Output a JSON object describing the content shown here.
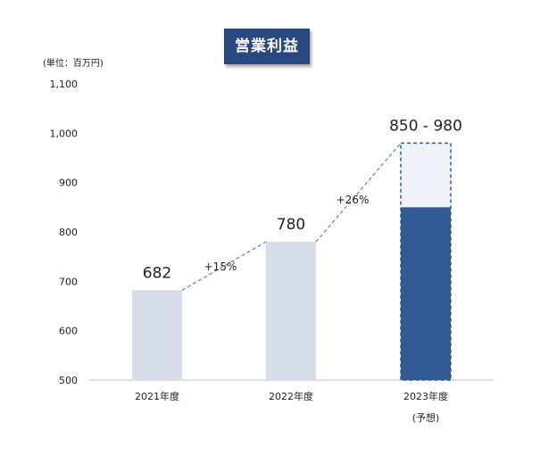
{
  "title": "営業利益",
  "unit_label": "(単位：百万円)",
  "chart_data": {
    "type": "bar",
    "categories": [
      "2021年度",
      "2022年度",
      "2023年度"
    ],
    "category_sublabels": [
      "",
      "",
      "(予想)"
    ],
    "values": [
      682,
      780,
      850
    ],
    "forecast_upper": 980,
    "data_labels": [
      "682",
      "780",
      "850 - 980"
    ],
    "growth_labels": [
      "+15%",
      "+26%"
    ],
    "ylim": [
      500,
      1100
    ],
    "yticks": [
      "500",
      "600",
      "700",
      "800",
      "900",
      "1,000",
      "1,100"
    ],
    "grid": false,
    "colors": {
      "past_bar": "#d6dce9",
      "forecast_bar": "#325a94",
      "forecast_range_fill": "#f0f4fa",
      "forecast_range_border": "#325a94",
      "connector": "#5a82bd",
      "axis": "#bfbfbf"
    }
  }
}
